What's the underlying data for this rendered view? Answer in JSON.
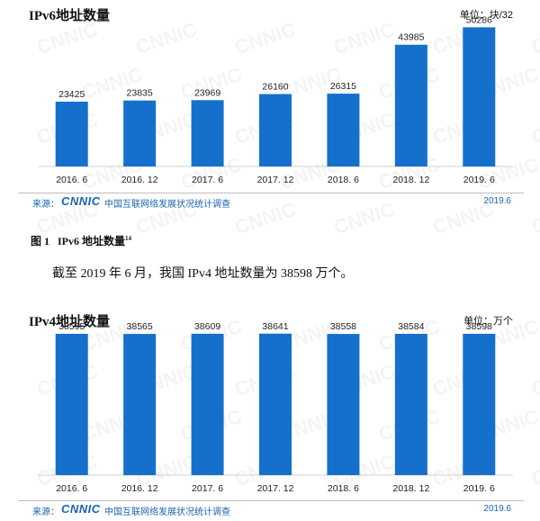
{
  "caption": {
    "label": "图 1",
    "text": "IPv6 地址数量",
    "note": "14"
  },
  "body_text": "截至 2019 年 6 月，我国 IPv4 地址数量为 38598 万个。",
  "source": {
    "label": "来源：",
    "logo": "CNNIC",
    "org": "中国互联网络发展状况统计调查",
    "date": "2019.6"
  },
  "watermark": "CNNIC",
  "colors": {
    "bar": "#1570cc",
    "source": "#1a63b5"
  },
  "chart_data": [
    {
      "type": "bar",
      "title": "IPv6地址数量",
      "unit": "单位：块/32",
      "categories": [
        "2016. 6",
        "2016. 12",
        "2017. 6",
        "2017. 12",
        "2018. 6",
        "2018. 12",
        "2019. 6"
      ],
      "values": [
        23425,
        23835,
        23969,
        26160,
        26315,
        43985,
        50286
      ],
      "ylim": [
        0,
        53000
      ]
    },
    {
      "type": "bar",
      "title": "IPv4地址数量",
      "unit": "单位：万个",
      "categories": [
        "2016. 6",
        "2016. 12",
        "2017. 6",
        "2017. 12",
        "2018. 6",
        "2018. 12",
        "2019. 6"
      ],
      "values": [
        38595,
        38565,
        38609,
        38641,
        38558,
        38584,
        38598
      ],
      "ylim": [
        0,
        40800
      ]
    }
  ]
}
